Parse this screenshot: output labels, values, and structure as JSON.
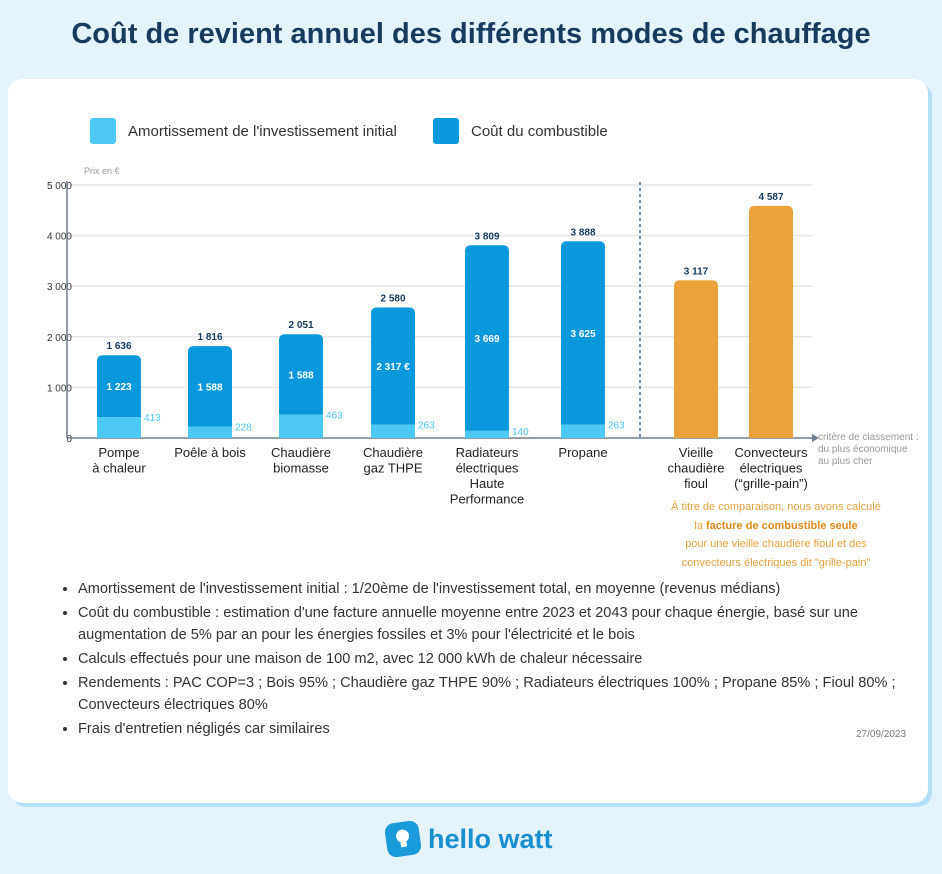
{
  "title": "Coût de revient annuel des différents modes de chauffage",
  "chart_data": {
    "type": "bar",
    "stacked": true,
    "ylabel": "Prix en €",
    "ylim": [
      0,
      5000
    ],
    "yticks": [
      0,
      1000,
      2000,
      3000,
      4000,
      5000
    ],
    "ytick_labels": [
      "0",
      "1 000",
      "2 000",
      "3 000",
      "4 000",
      "5 000"
    ],
    "grid": true,
    "legend_position": "top-left",
    "categories": [
      "Pompe\nà chaleur",
      "Poêle à bois",
      "Chaudière\nbiomasse",
      "Chaudière\ngaz THPE",
      "Radiateurs\nélectriques\nHaute\nPerformance",
      "Propane",
      "Vieille\nchaudière\nfioul",
      "Convecteurs\nélectriques\n(“grille-pain”)"
    ],
    "series": [
      {
        "name": "Amortissement de l'investissement initial",
        "color": "#4cc8f4",
        "values": [
          413,
          228,
          463,
          263,
          140,
          263,
          null,
          null
        ],
        "labels": [
          "413",
          "228",
          "463",
          "263",
          "140",
          "263",
          "",
          ""
        ]
      },
      {
        "name": "Coût du combustible",
        "color": "#0a98dc",
        "values": [
          1223,
          1588,
          1588,
          2317,
          3669,
          3625,
          null,
          null
        ],
        "labels": [
          "1 223",
          "1 588",
          "1 588",
          "2 317 €",
          "3 669",
          "3 625",
          "",
          ""
        ]
      },
      {
        "color": "#eba23b",
        "values": [
          null,
          null,
          null,
          null,
          null,
          null,
          3117,
          4587
        ]
      }
    ],
    "totals": [
      1636,
      1816,
      2051,
      2580,
      3809,
      3888,
      3117,
      4587
    ],
    "total_labels": [
      "1 636",
      "1 816",
      "2 051",
      "2 580",
      "3 809",
      "3 888",
      "3 117",
      "4 587"
    ],
    "x_axis_note": [
      "critère de classement :",
      "du plus économique",
      "au plus cher"
    ],
    "comparison_note": {
      "line1": "À titre de comparaison, nous avons calculé",
      "line2_pre": "la ",
      "line2_bold": "facture de combustible seule",
      "line3": "pour une vieille chaudière fioul et des",
      "line4": "convecteurs électriques dit \"grille-pain\""
    }
  },
  "notes": [
    "Amortissement de l'investissement initial : 1/20ème de l'investissement total, en moyenne (revenus médians)",
    "Coût du combustible : estimation d'une facture annuelle moyenne entre 2023 et 2043 pour chaque énergie, basé sur une augmentation de 5% par an pour les énergies fossiles et 3% pour l'électricité et le bois",
    "Calculs effectués pour une maison de 100 m2, avec 12 000 kWh de chaleur nécessaire",
    "Rendements : PAC COP=3 ; Bois 95% ; Chaudière gaz THPE 90% ; Radiateurs électriques 100% ; Propane 85% ; Fioul 80% ; Convecteurs électriques 80%",
    "Frais d'entretien négligés car similaires"
  ],
  "date": "27/09/2023",
  "logo": {
    "text": "hello watt",
    "icon": "lightbulb-icon"
  }
}
